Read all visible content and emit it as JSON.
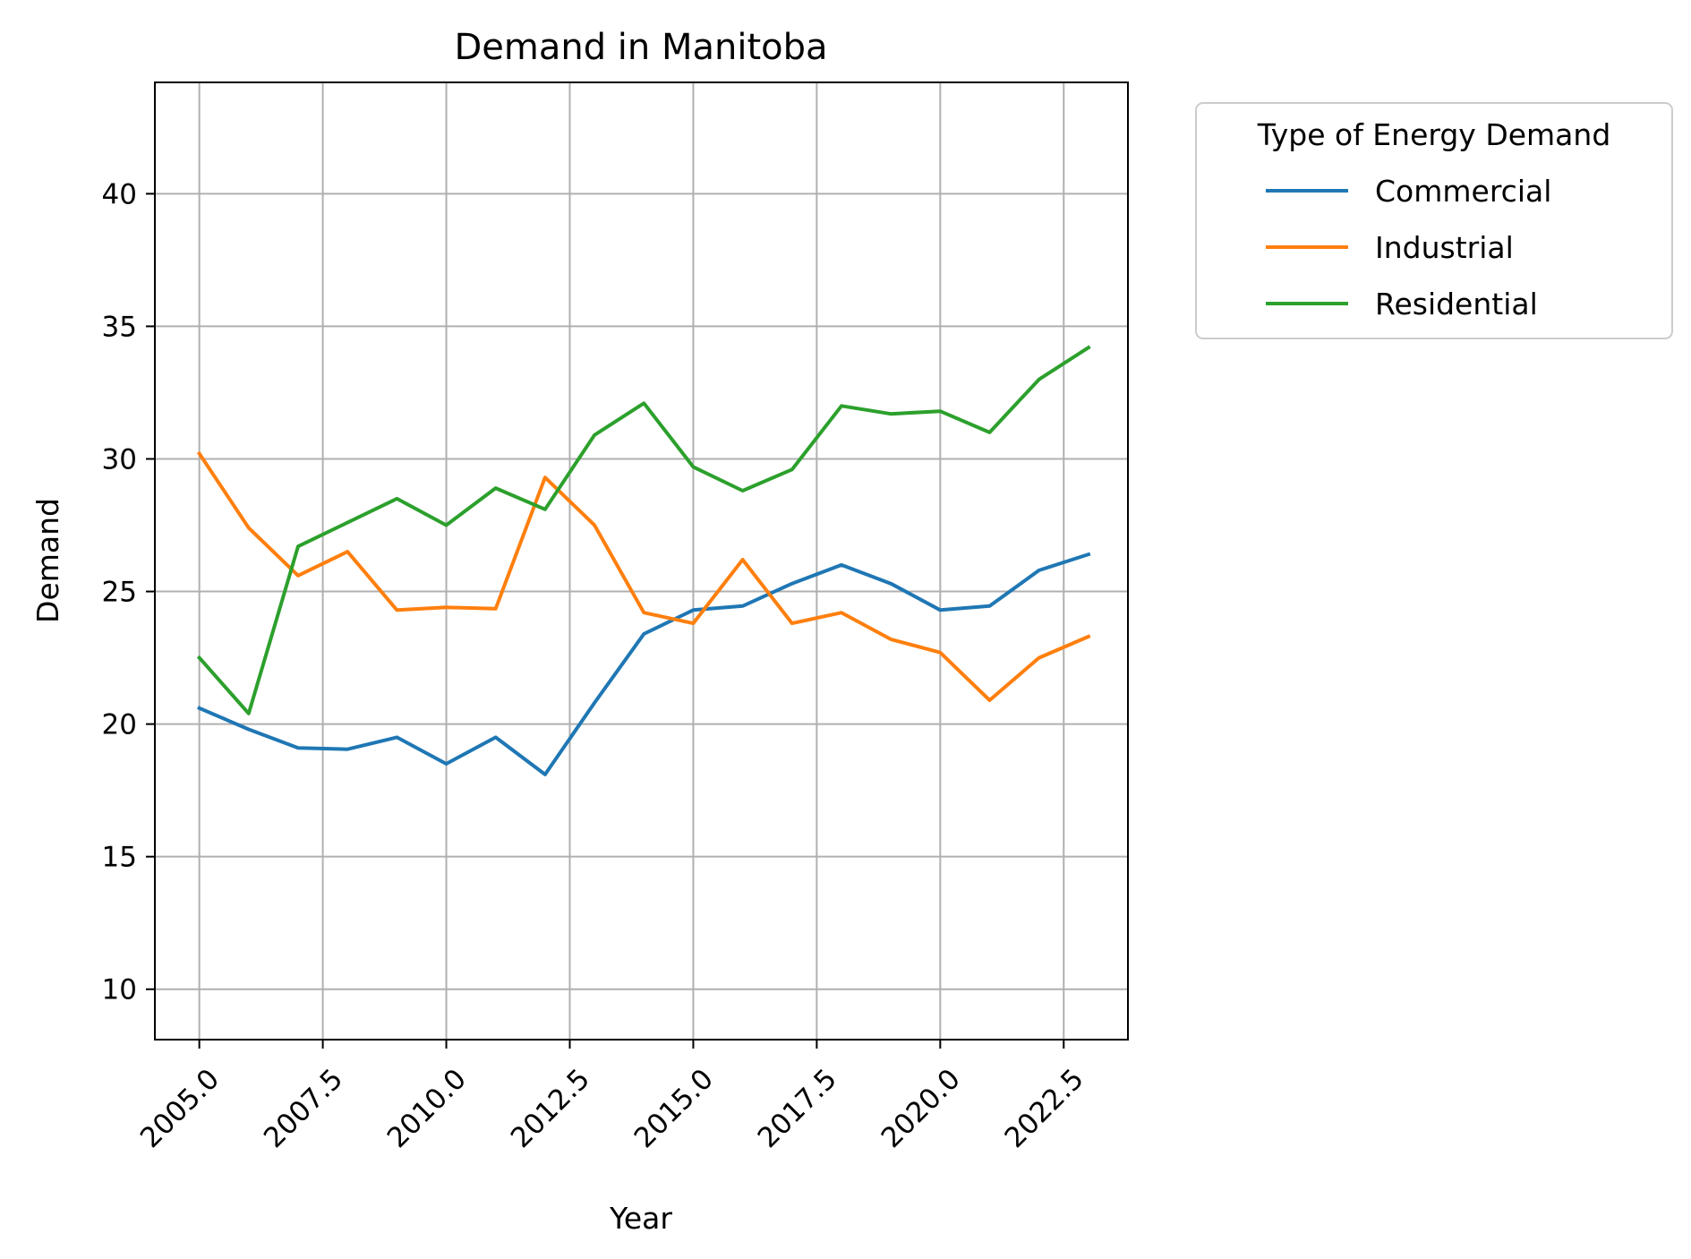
{
  "chart_data": {
    "type": "line",
    "title": "Demand in Manitoba",
    "xlabel": "Year",
    "ylabel": "Demand",
    "xlim": [
      2004.1,
      2023.8
    ],
    "ylim": [
      8.1,
      44.2
    ],
    "xticks": [
      2005.0,
      2007.5,
      2010.0,
      2012.5,
      2015.0,
      2017.5,
      2020.0,
      2022.5
    ],
    "xtick_labels": [
      "2005.0",
      "2007.5",
      "2010.0",
      "2012.5",
      "2015.0",
      "2017.5",
      "2020.0",
      "2022.5"
    ],
    "yticks": [
      10,
      15,
      20,
      25,
      30,
      35,
      40
    ],
    "ytick_labels": [
      "10",
      "15",
      "20",
      "25",
      "30",
      "35",
      "40"
    ],
    "grid": true,
    "legend": {
      "title": "Type of Energy Demand",
      "placement": "outside-right-top"
    },
    "x": [
      2005,
      2006,
      2007,
      2008,
      2009,
      2010,
      2011,
      2012,
      2013,
      2014,
      2015,
      2016,
      2017,
      2018,
      2019,
      2020,
      2021,
      2022,
      2023
    ],
    "series": [
      {
        "name": "Commercial",
        "color": "#1f77b4",
        "values": [
          20.6,
          19.8,
          19.1,
          19.05,
          19.5,
          18.5,
          19.5,
          18.1,
          20.8,
          23.4,
          24.3,
          24.45,
          25.3,
          26.0,
          25.3,
          24.3,
          24.45,
          25.8,
          26.4
        ]
      },
      {
        "name": "Industrial",
        "color": "#ff7f0e",
        "values": [
          30.2,
          27.4,
          25.6,
          26.5,
          24.3,
          24.4,
          24.35,
          29.3,
          27.5,
          24.2,
          23.8,
          26.2,
          23.8,
          24.2,
          23.2,
          22.7,
          20.9,
          22.5,
          23.3
        ]
      },
      {
        "name": "Residential",
        "color": "#2ca02c",
        "values": [
          22.5,
          20.4,
          26.7,
          27.6,
          28.5,
          27.5,
          28.9,
          28.1,
          30.9,
          32.1,
          29.7,
          28.8,
          29.6,
          32.0,
          31.7,
          31.8,
          31.0,
          33.0,
          34.2
        ]
      }
    ]
  }
}
